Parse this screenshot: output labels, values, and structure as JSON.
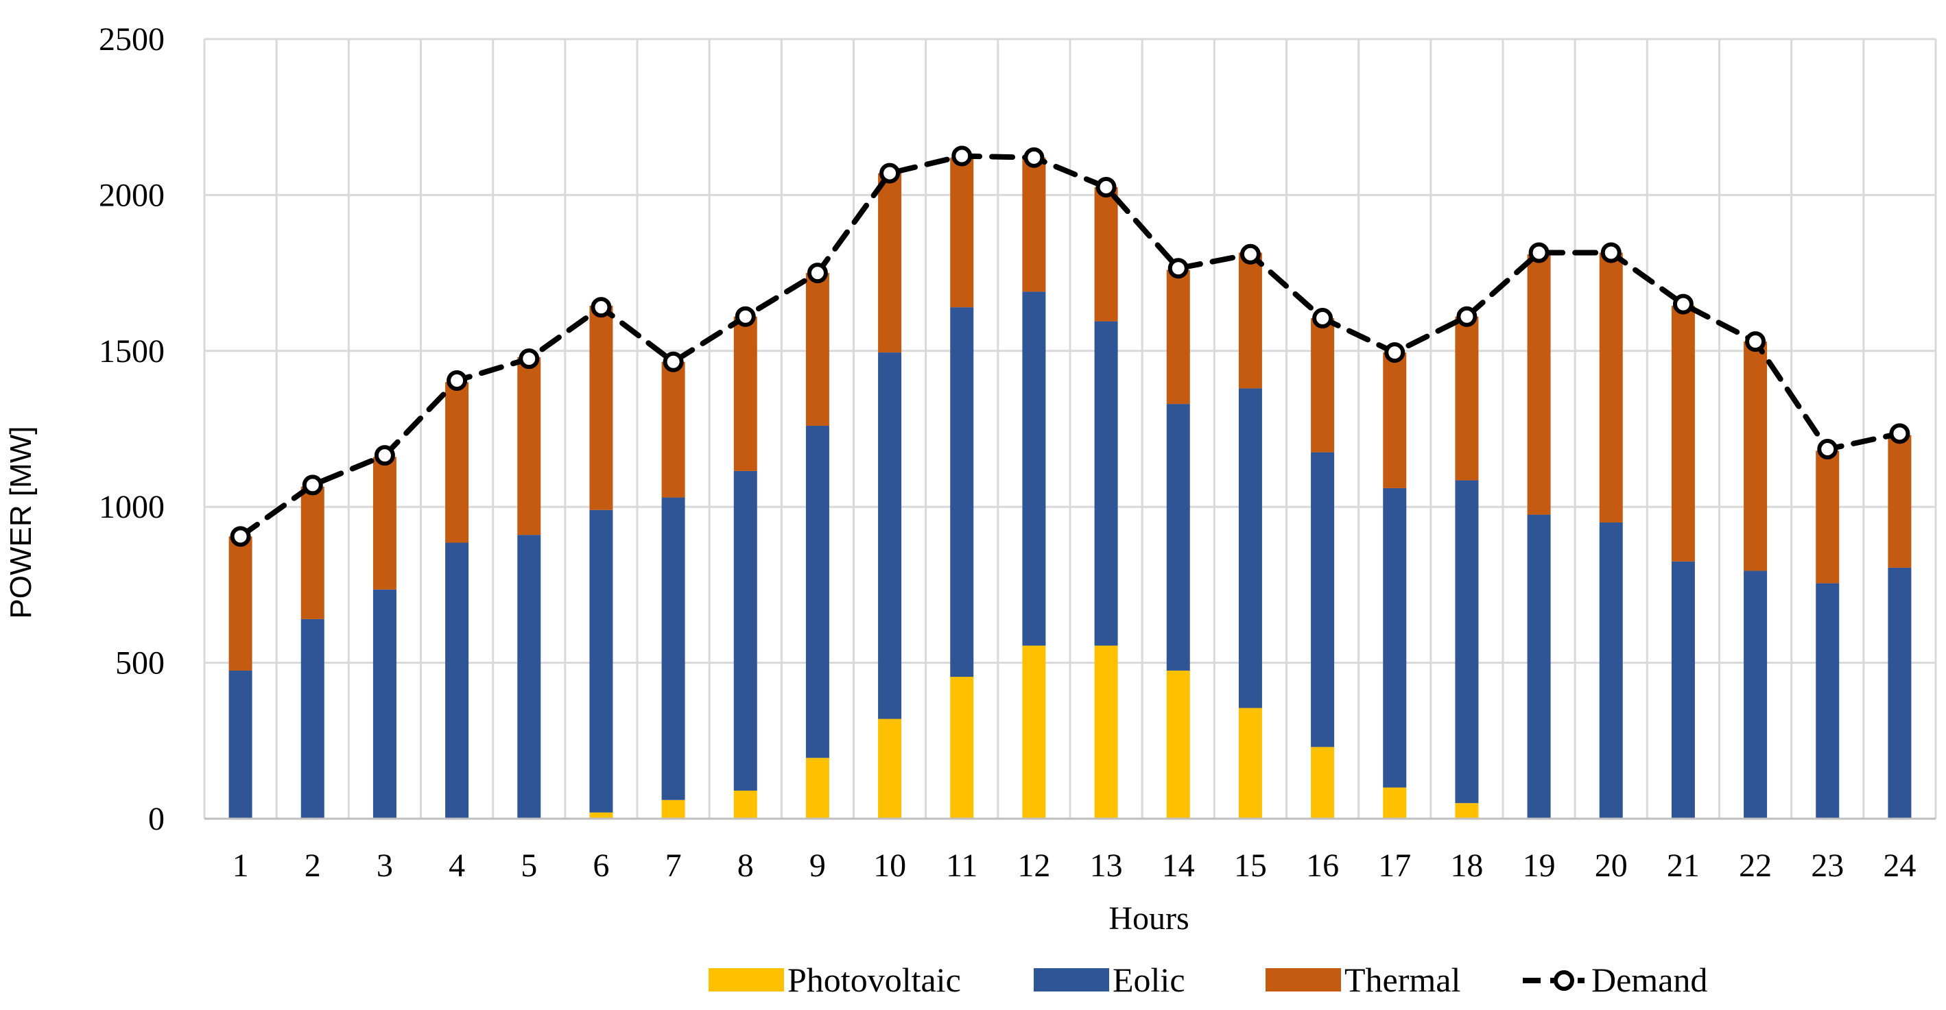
{
  "chart_data": {
    "type": "bar",
    "stacked": true,
    "title": "",
    "xlabel": "Hours",
    "ylabel": "POWER [MW]",
    "ylim": [
      0,
      2500
    ],
    "yticks": [
      0,
      500,
      1000,
      1500,
      2000,
      2500
    ],
    "grid": true,
    "legend_position": "bottom",
    "categories": [
      "1",
      "2",
      "3",
      "4",
      "5",
      "6",
      "7",
      "8",
      "9",
      "10",
      "11",
      "12",
      "13",
      "14",
      "15",
      "16",
      "17",
      "18",
      "19",
      "20",
      "21",
      "22",
      "23",
      "24"
    ],
    "series": [
      {
        "name": "Photovoltaic",
        "kind": "bar",
        "color": "#FFC000",
        "values": [
          0,
          0,
          0,
          0,
          0,
          20,
          60,
          90,
          195,
          320,
          455,
          555,
          555,
          475,
          355,
          230,
          100,
          50,
          0,
          0,
          0,
          0,
          0,
          0
        ]
      },
      {
        "name": "Eolic",
        "kind": "bar",
        "color": "#2F5597",
        "values": [
          475,
          640,
          735,
          885,
          910,
          970,
          970,
          1025,
          1065,
          1175,
          1185,
          1135,
          1040,
          855,
          1025,
          945,
          960,
          1035,
          975,
          950,
          825,
          795,
          755,
          805
        ]
      },
      {
        "name": "Thermal",
        "kind": "bar",
        "color": "#C55A11",
        "values": [
          430,
          425,
          425,
          515,
          570,
          655,
          435,
          495,
          490,
          575,
          480,
          430,
          430,
          430,
          435,
          430,
          435,
          525,
          835,
          865,
          820,
          735,
          425,
          425
        ]
      },
      {
        "name": "Demand",
        "kind": "line",
        "color": "#000000",
        "style": "dashed",
        "marker": "circle",
        "values": [
          905,
          1070,
          1165,
          1405,
          1475,
          1640,
          1465,
          1610,
          1750,
          2070,
          2125,
          2120,
          2025,
          1765,
          1810,
          1605,
          1495,
          1610,
          1815,
          1815,
          1650,
          1530,
          1185,
          1235
        ]
      }
    ]
  }
}
